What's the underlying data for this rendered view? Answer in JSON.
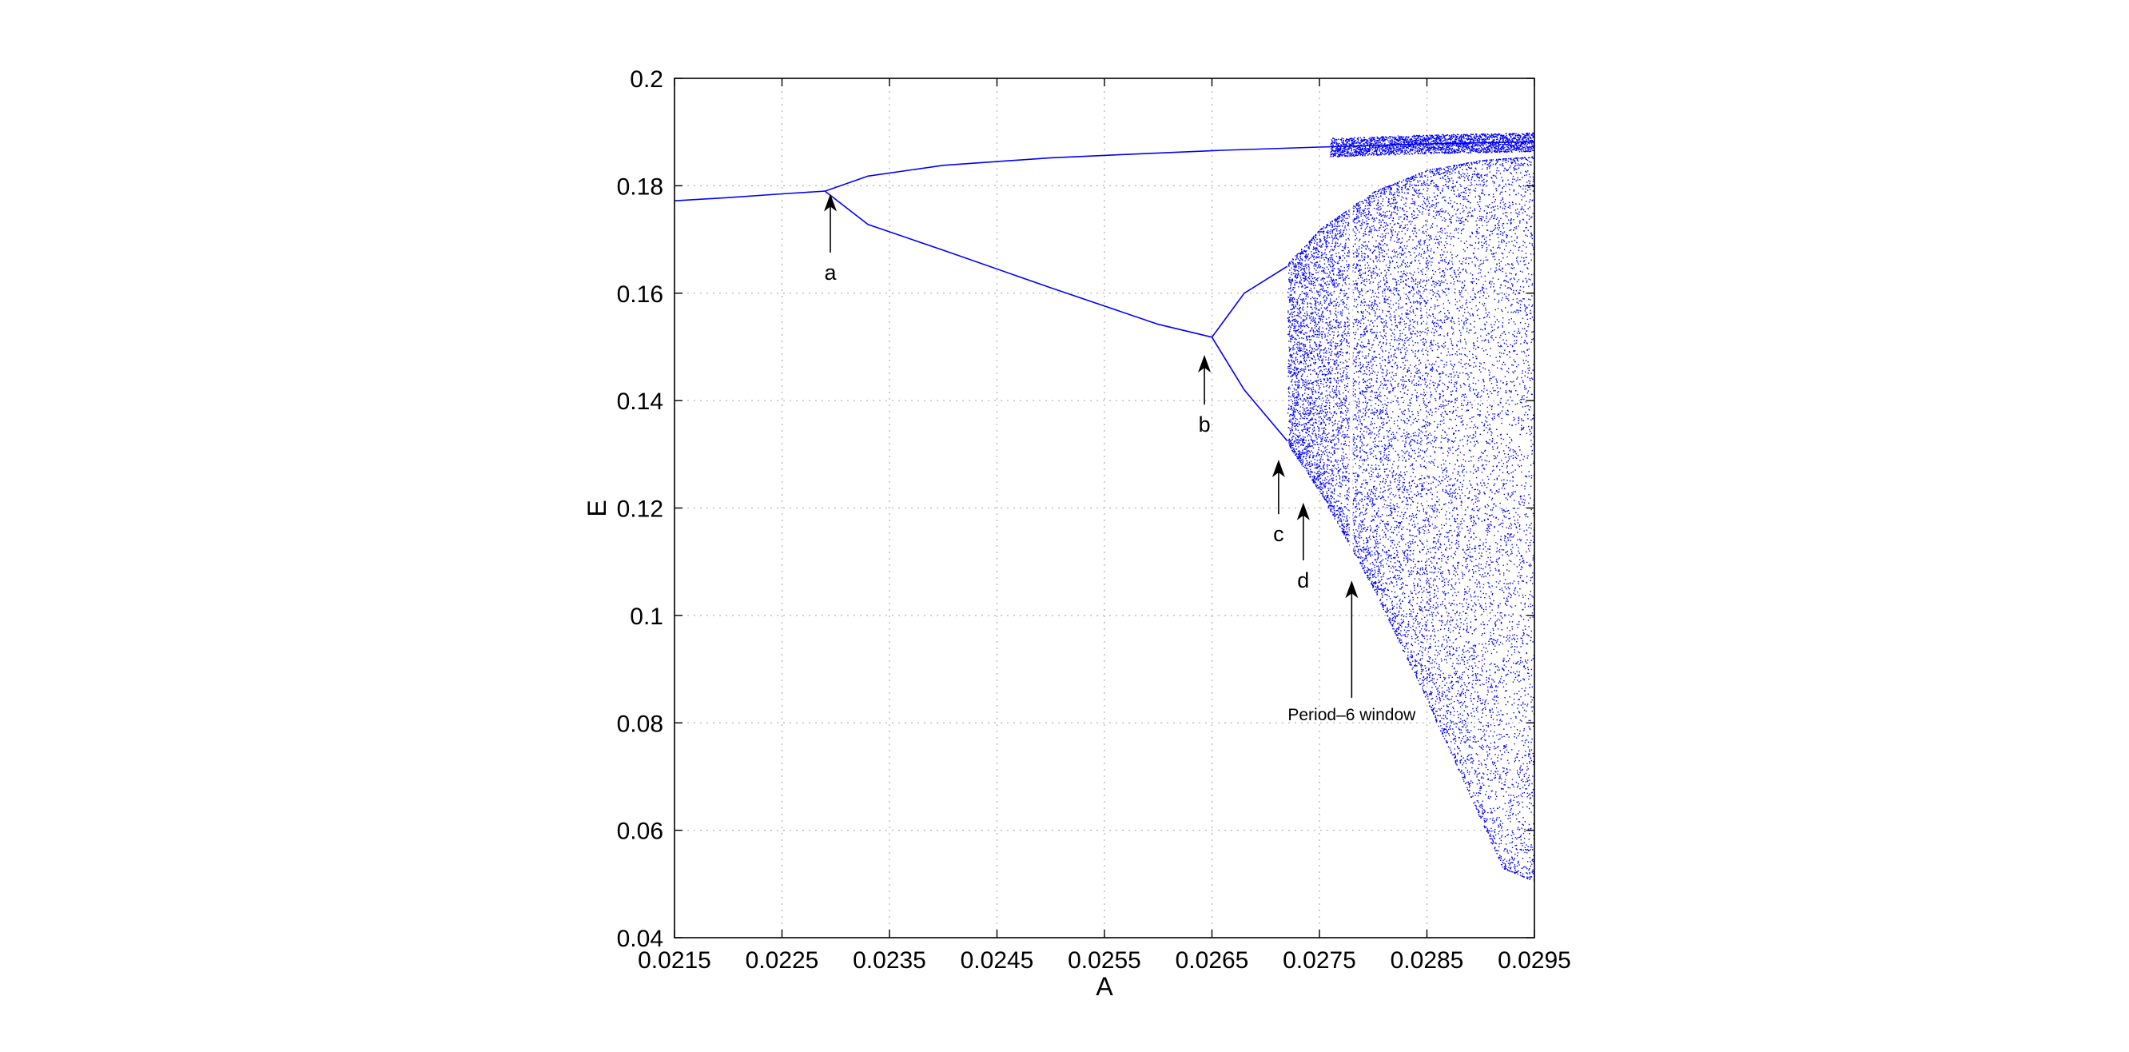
{
  "chart_data": {
    "type": "scatter",
    "title": "",
    "xlabel": "A",
    "ylabel": "E",
    "xlim": [
      0.0215,
      0.0295
    ],
    "ylim": [
      0.04,
      0.2
    ],
    "grid": true,
    "grid_style": "dotted",
    "point_color": "#0000ff",
    "x_ticks": [
      "0.0215",
      "0.0225",
      "0.0235",
      "0.0245",
      "0.0255",
      "0.0265",
      "0.0275",
      "0.0285",
      "0.0295"
    ],
    "y_ticks": [
      "0.04",
      "0.06",
      "0.08",
      "0.1",
      "0.12",
      "0.14",
      "0.16",
      "0.18",
      "0.2"
    ],
    "series": [
      {
        "description_type": "bifurcation-branches",
        "branches": [
          {
            "x": [
              0.0215,
              0.022,
              0.0225,
              0.0229
            ],
            "y": [
              0.1772,
              0.1778,
              0.1785,
              0.179
            ]
          },
          {
            "x": [
              0.0229,
              0.0233,
              0.024,
              0.025,
              0.026,
              0.0266,
              0.0275,
              0.0285,
              0.0295
            ],
            "y": [
              0.179,
              0.1818,
              0.1838,
              0.1852,
              0.1861,
              0.1866,
              0.1872,
              0.1878,
              0.1882
            ]
          },
          {
            "x": [
              0.0229,
              0.0233,
              0.024,
              0.025,
              0.026,
              0.0265
            ],
            "y": [
              0.179,
              0.1728,
              0.168,
              0.161,
              0.1542,
              0.1518
            ]
          },
          {
            "x": [
              0.0265,
              0.0268,
              0.0272
            ],
            "y": [
              0.1518,
              0.16,
              0.165
            ]
          },
          {
            "x": [
              0.0265,
              0.0268,
              0.0272
            ],
            "y": [
              0.1518,
              0.142,
              0.1325
            ]
          }
        ],
        "chaotic_band": {
          "x_start": 0.0272,
          "x_end": 0.0295,
          "upper": [
            [
              0.0272,
              0.1655
            ],
            [
              0.0275,
              0.172
            ],
            [
              0.028,
              0.179
            ],
            [
              0.0285,
              0.183
            ],
            [
              0.029,
              0.1848
            ],
            [
              0.0295,
              0.1855
            ]
          ],
          "lower": [
            [
              0.0272,
              0.132
            ],
            [
              0.0275,
              0.123
            ],
            [
              0.028,
              0.105
            ],
            [
              0.0285,
              0.084
            ],
            [
              0.029,
              0.062
            ],
            [
              0.0292,
              0.053
            ],
            [
              0.0295,
              0.0505
            ]
          ]
        }
      }
    ],
    "annotations": [
      {
        "label": "a",
        "arrow_tip": [
          0.02295,
          0.1785
        ],
        "text_pos": [
          0.02295,
          0.1625
        ],
        "size": "normal"
      },
      {
        "label": "b",
        "arrow_tip": [
          0.02643,
          0.1485
        ],
        "text_pos": [
          0.02643,
          0.1342
        ],
        "size": "normal"
      },
      {
        "label": "c",
        "arrow_tip": [
          0.02712,
          0.129
        ],
        "text_pos": [
          0.02712,
          0.1138
        ],
        "size": "normal"
      },
      {
        "label": "d",
        "arrow_tip": [
          0.02735,
          0.121
        ],
        "text_pos": [
          0.02735,
          0.1052
        ],
        "size": "normal"
      },
      {
        "label": "Period–6 window",
        "arrow_tip": [
          0.0278,
          0.1065
        ],
        "text_pos": [
          0.0278,
          0.0805
        ],
        "size": "small"
      }
    ]
  }
}
